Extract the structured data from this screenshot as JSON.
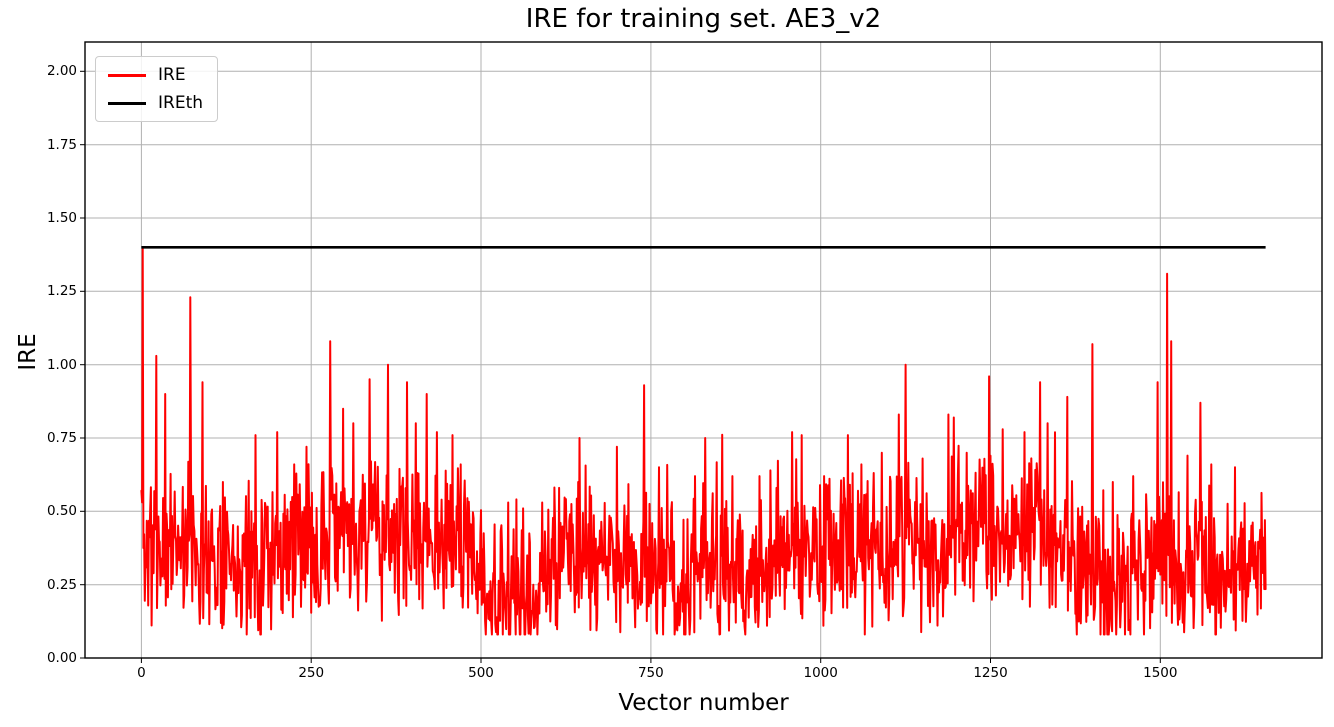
{
  "figure": {
    "title": "IRE for training set. AE3_v2"
  },
  "chart_data": {
    "type": "line",
    "title": "IRE for training set. AE3_v2",
    "xlabel": "Vector number",
    "ylabel": "IRE",
    "xlim": [
      -83,
      1738
    ],
    "ylim": [
      0,
      2.1
    ],
    "xticks": [
      0,
      250,
      500,
      750,
      1000,
      1250,
      1500
    ],
    "yticks": [
      "0.00",
      "0.25",
      "0.50",
      "0.75",
      "1.00",
      "1.25",
      "1.50",
      "1.75",
      "2.00"
    ],
    "grid": true,
    "grid_color": "#b0b0b0",
    "background": "#ffffff",
    "legend": {
      "position": "upper-left",
      "entries": [
        {
          "label": "IRE",
          "color": "#ff0000"
        },
        {
          "label": "IREth",
          "color": "#000000"
        }
      ]
    },
    "threshold": {
      "name": "IREth",
      "value": 1.4,
      "color": "#000000",
      "x_start": 0,
      "x_end": 1655
    },
    "series": [
      {
        "name": "IRE",
        "color": "#ff0000",
        "n_points": 1656,
        "start_value": 0.57,
        "value_range_typical": [
          0.08,
          0.65
        ],
        "envelope": [
          [
            0,
            0.4
          ],
          [
            15,
            0.38
          ],
          [
            40,
            0.4
          ],
          [
            70,
            0.42
          ],
          [
            100,
            0.35
          ],
          [
            150,
            0.33
          ],
          [
            200,
            0.36
          ],
          [
            250,
            0.38
          ],
          [
            270,
            0.42
          ],
          [
            300,
            0.4
          ],
          [
            340,
            0.42
          ],
          [
            380,
            0.42
          ],
          [
            420,
            0.4
          ],
          [
            460,
            0.38
          ],
          [
            500,
            0.32
          ],
          [
            515,
            0.18
          ],
          [
            545,
            0.17
          ],
          [
            575,
            0.2
          ],
          [
            600,
            0.28
          ],
          [
            625,
            0.38
          ],
          [
            645,
            0.35
          ],
          [
            665,
            0.3
          ],
          [
            690,
            0.32
          ],
          [
            720,
            0.34
          ],
          [
            750,
            0.32
          ],
          [
            780,
            0.25
          ],
          [
            800,
            0.24
          ],
          [
            820,
            0.3
          ],
          [
            840,
            0.32
          ],
          [
            860,
            0.28
          ],
          [
            880,
            0.26
          ],
          [
            900,
            0.3
          ],
          [
            920,
            0.35
          ],
          [
            940,
            0.32
          ],
          [
            960,
            0.38
          ],
          [
            980,
            0.34
          ],
          [
            1000,
            0.33
          ],
          [
            1020,
            0.36
          ],
          [
            1040,
            0.4
          ],
          [
            1060,
            0.36
          ],
          [
            1080,
            0.34
          ],
          [
            1100,
            0.38
          ],
          [
            1120,
            0.42
          ],
          [
            1140,
            0.35
          ],
          [
            1160,
            0.33
          ],
          [
            1180,
            0.38
          ],
          [
            1200,
            0.42
          ],
          [
            1220,
            0.4
          ],
          [
            1240,
            0.42
          ],
          [
            1260,
            0.4
          ],
          [
            1280,
            0.38
          ],
          [
            1300,
            0.42
          ],
          [
            1320,
            0.44
          ],
          [
            1340,
            0.4
          ],
          [
            1360,
            0.38
          ],
          [
            1380,
            0.3
          ],
          [
            1400,
            0.28
          ],
          [
            1420,
            0.25
          ],
          [
            1440,
            0.24
          ],
          [
            1460,
            0.28
          ],
          [
            1480,
            0.3
          ],
          [
            1500,
            0.35
          ],
          [
            1520,
            0.33
          ],
          [
            1540,
            0.3
          ],
          [
            1560,
            0.32
          ],
          [
            1580,
            0.26
          ],
          [
            1600,
            0.24
          ],
          [
            1620,
            0.28
          ],
          [
            1640,
            0.32
          ],
          [
            1655,
            0.4
          ]
        ],
        "spikes": [
          [
            2,
            1.4
          ],
          [
            22,
            1.03
          ],
          [
            35,
            0.9
          ],
          [
            72,
            1.23
          ],
          [
            90,
            0.94
          ],
          [
            120,
            0.6
          ],
          [
            168,
            0.76
          ],
          [
            200,
            0.77
          ],
          [
            225,
            0.66
          ],
          [
            243,
            0.72
          ],
          [
            278,
            1.08
          ],
          [
            297,
            0.85
          ],
          [
            312,
            0.8
          ],
          [
            336,
            0.95
          ],
          [
            363,
            1.0
          ],
          [
            391,
            0.94
          ],
          [
            404,
            0.8
          ],
          [
            420,
            0.9
          ],
          [
            435,
            0.77
          ],
          [
            458,
            0.76
          ],
          [
            470,
            0.66
          ],
          [
            540,
            0.53
          ],
          [
            562,
            0.51
          ],
          [
            590,
            0.53
          ],
          [
            615,
            0.58
          ],
          [
            645,
            0.75
          ],
          [
            700,
            0.72
          ],
          [
            740,
            0.93
          ],
          [
            762,
            0.65
          ],
          [
            815,
            0.62
          ],
          [
            830,
            0.75
          ],
          [
            870,
            0.62
          ],
          [
            910,
            0.62
          ],
          [
            935,
            0.58
          ],
          [
            958,
            0.77
          ],
          [
            972,
            0.76
          ],
          [
            1005,
            0.62
          ],
          [
            1040,
            0.76
          ],
          [
            1060,
            0.66
          ],
          [
            1090,
            0.7
          ],
          [
            1115,
            0.83
          ],
          [
            1125,
            1.0
          ],
          [
            1150,
            0.68
          ],
          [
            1188,
            0.83
          ],
          [
            1196,
            0.82
          ],
          [
            1215,
            0.7
          ],
          [
            1248,
            0.96
          ],
          [
            1268,
            0.78
          ],
          [
            1300,
            0.77
          ],
          [
            1323,
            0.94
          ],
          [
            1334,
            0.8
          ],
          [
            1363,
            0.89
          ],
          [
            1400,
            1.07
          ],
          [
            1430,
            0.6
          ],
          [
            1460,
            0.62
          ],
          [
            1496,
            0.94
          ],
          [
            1510,
            1.31
          ],
          [
            1516,
            1.08
          ],
          [
            1540,
            0.69
          ],
          [
            1559,
            0.87
          ],
          [
            1575,
            0.66
          ],
          [
            1610,
            0.65
          ],
          [
            1654,
            0.47
          ]
        ],
        "noise": {
          "seed": 11,
          "amp": 0.3,
          "bump_prob": 0.05,
          "bump_amp": 0.28,
          "clip": [
            0.08,
            1.36
          ]
        }
      }
    ]
  }
}
